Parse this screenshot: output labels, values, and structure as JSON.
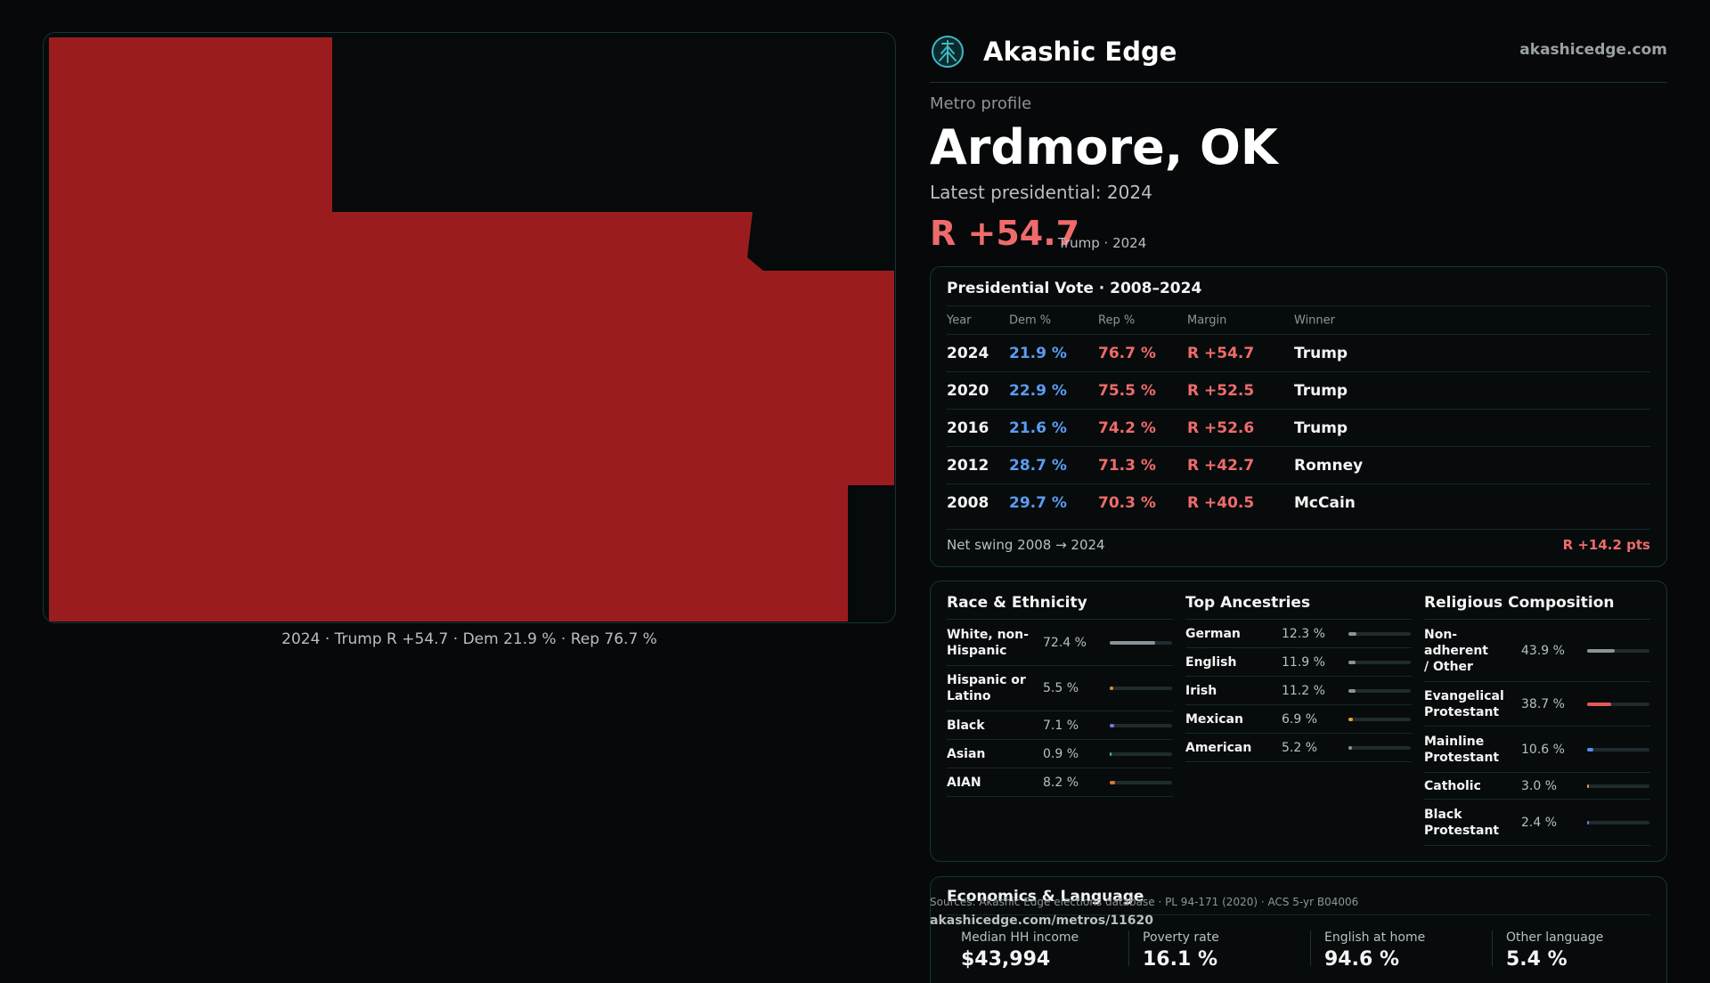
{
  "map": {
    "caption": "2024 · Trump R +54.7 · Dem 21.9 % · Rep 76.7 %",
    "fill_color": "#9b1c1f"
  },
  "header": {
    "brand": "Akashic Edge",
    "site": "akashicedge.com",
    "logo_icon": "tree-globe-icon"
  },
  "profile": {
    "kicker": "Metro profile",
    "title": "Ardmore, OK",
    "latest": "Latest presidential: 2024",
    "margin": "R +54.7",
    "margin_sub": "Trump · 2024"
  },
  "vote": {
    "title": "Presidential Vote · 2008–2024",
    "headers": {
      "year": "Year",
      "dem": "Dem %",
      "rep": "Rep %",
      "margin": "Margin",
      "winner": "Winner"
    },
    "rows": [
      {
        "year": "2024",
        "dem": "21.9 %",
        "rep": "76.7 %",
        "margin": "R +54.7",
        "winner": "Trump"
      },
      {
        "year": "2020",
        "dem": "22.9 %",
        "rep": "75.5 %",
        "margin": "R +52.5",
        "winner": "Trump"
      },
      {
        "year": "2016",
        "dem": "21.6 %",
        "rep": "74.2 %",
        "margin": "R +52.6",
        "winner": "Trump"
      },
      {
        "year": "2012",
        "dem": "28.7 %",
        "rep": "71.3 %",
        "margin": "R +42.7",
        "winner": "Romney"
      },
      {
        "year": "2008",
        "dem": "29.7 %",
        "rep": "70.3 %",
        "margin": "R +40.5",
        "winner": "McCain"
      }
    ],
    "swing_label": "Net swing 2008 → 2024",
    "swing_value": "R +14.2 pts"
  },
  "race": {
    "title": "Race & Ethnicity",
    "items": [
      {
        "label": "White, non-Hispanic",
        "value": "72.4 %",
        "pct": 72.4,
        "color": "#8a939a"
      },
      {
        "label": "Hispanic or Latino",
        "value": "5.5 %",
        "pct": 5.5,
        "color": "#e0902a"
      },
      {
        "label": "Black",
        "value": "7.1 %",
        "pct": 7.1,
        "color": "#7d74d8"
      },
      {
        "label": "Asian",
        "value": "0.9 %",
        "pct": 0.9,
        "color": "#3cb7a8"
      },
      {
        "label": "AIAN",
        "value": "8.2 %",
        "pct": 8.2,
        "color": "#d7792a"
      }
    ]
  },
  "ancestry": {
    "title": "Top Ancestries",
    "items": [
      {
        "label": "German",
        "value": "12.3 %",
        "pct": 12.3,
        "color": "#8a939a"
      },
      {
        "label": "English",
        "value": "11.9 %",
        "pct": 11.9,
        "color": "#8a939a"
      },
      {
        "label": "Irish",
        "value": "11.2 %",
        "pct": 11.2,
        "color": "#8a939a"
      },
      {
        "label": "Mexican",
        "value": "6.9 %",
        "pct": 6.9,
        "color": "#e0a02a"
      },
      {
        "label": "American",
        "value": "5.2 %",
        "pct": 5.2,
        "color": "#8a939a"
      }
    ]
  },
  "religion": {
    "title": "Religious Composition",
    "items": [
      {
        "label": "Non-adherent / Other",
        "value": "43.9 %",
        "pct": 43.9,
        "color": "#8a939a"
      },
      {
        "label": "Evangelical Protestant",
        "value": "38.7 %",
        "pct": 38.7,
        "color": "#e05a5a"
      },
      {
        "label": "Mainline Protestant",
        "value": "10.6 %",
        "pct": 10.6,
        "color": "#4f8fe6"
      },
      {
        "label": "Catholic",
        "value": "3.0 %",
        "pct": 3.0,
        "color": "#e0a02a"
      },
      {
        "label": "Black Protestant",
        "value": "2.4 %",
        "pct": 2.4,
        "color": "#7d74d8"
      }
    ]
  },
  "economics": {
    "title": "Economics & Language",
    "stats": [
      {
        "label": "Median HH income",
        "value": "$43,994"
      },
      {
        "label": "Poverty rate",
        "value": "16.1 %"
      },
      {
        "label": "English at home",
        "value": "94.6 %"
      },
      {
        "label": "Other language",
        "value": "5.4 %"
      }
    ]
  },
  "footer": {
    "sources": "Sources: Akashic Edge elections database · PL 94-171 (2020) · ACS 5-yr B04006",
    "url": "akashicedge.com/metros/11620"
  }
}
